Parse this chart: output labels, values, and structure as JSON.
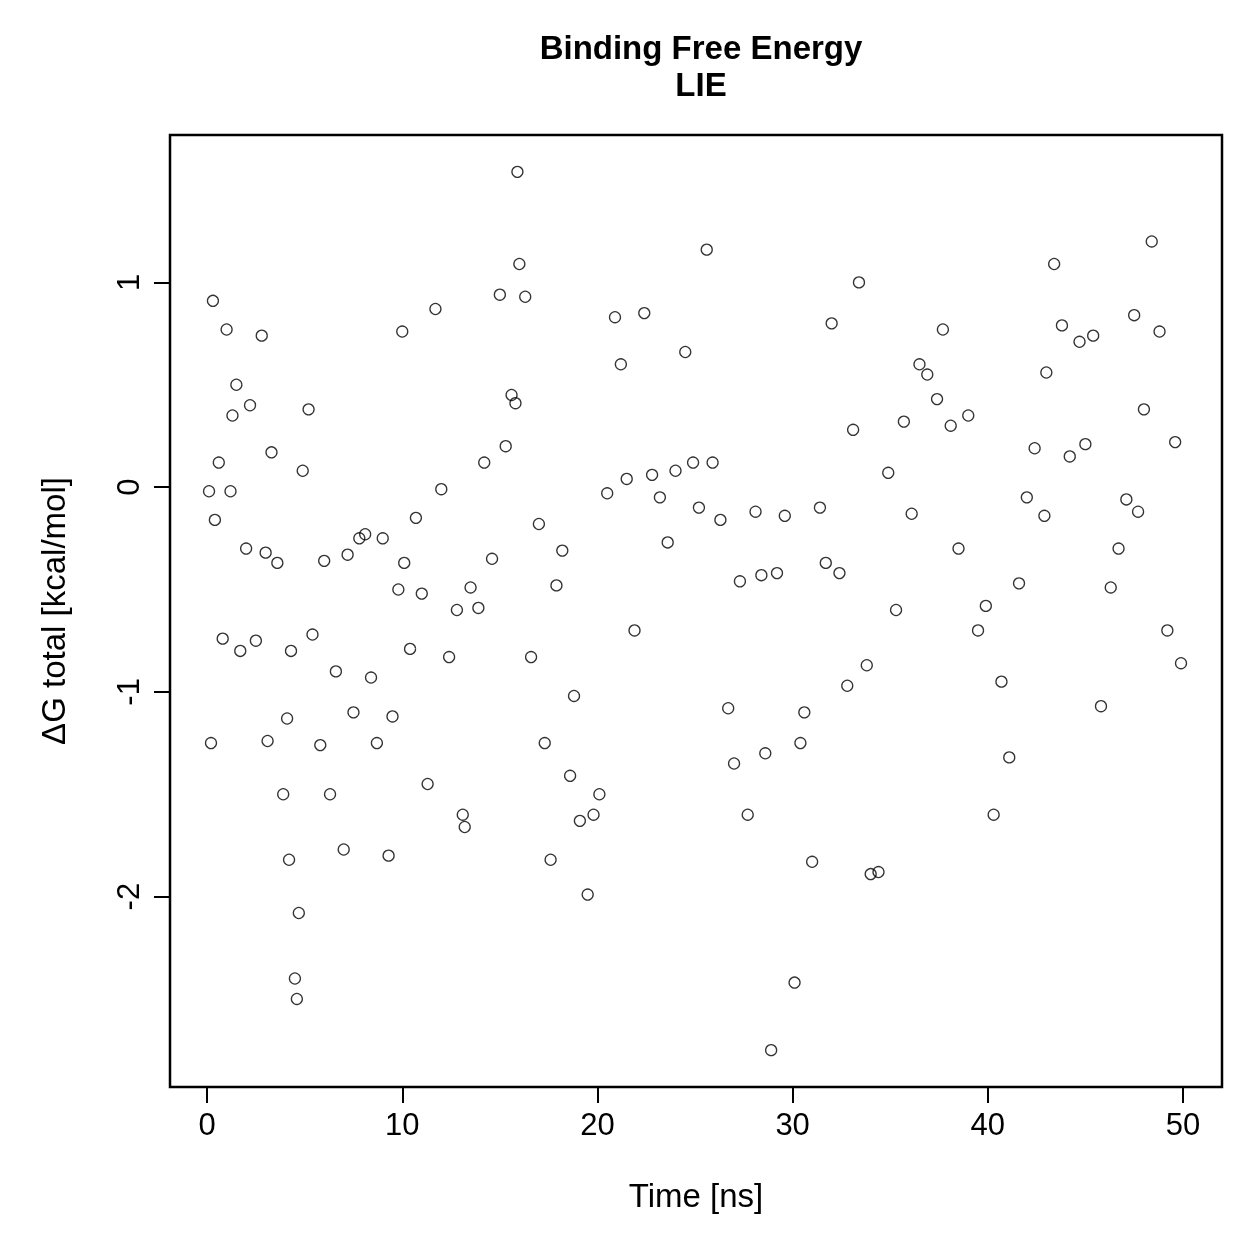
{
  "chart_data": {
    "type": "scatter",
    "title": "Binding Free Energy",
    "subtitle": "LIE",
    "xlabel": "Time [ns]",
    "ylabel": "ΔG total [kcal/mol]",
    "xlim": [
      -1.9,
      52
    ],
    "ylim": [
      -2.93,
      1.72
    ],
    "xticks": [
      0,
      10,
      20,
      30,
      40,
      50
    ],
    "yticks": [
      -2,
      -1,
      0,
      1
    ],
    "grid": false,
    "marker": "circle",
    "series": [
      {
        "color": "#000000",
        "x": [
          0.1,
          0.2,
          0.3,
          0.4,
          0.6,
          0.8,
          1.0,
          1.2,
          1.3,
          1.5,
          1.7,
          2.0,
          2.2,
          2.5,
          2.8,
          3.0,
          3.1,
          3.3,
          3.6,
          3.9,
          4.1,
          4.2,
          4.3,
          4.5,
          4.6,
          4.7,
          4.9,
          5.2,
          5.4,
          5.8,
          6.0,
          6.3,
          6.6,
          7.0,
          7.2,
          7.5,
          7.8,
          8.1,
          8.4,
          8.7,
          9.0,
          9.3,
          9.5,
          9.8,
          10.0,
          10.1,
          10.4,
          10.7,
          11.0,
          11.3,
          11.7,
          12.0,
          12.4,
          12.8,
          13.1,
          13.2,
          13.5,
          13.9,
          14.2,
          14.6,
          15.0,
          15.3,
          15.6,
          15.8,
          15.9,
          16.0,
          16.3,
          16.6,
          17.0,
          17.3,
          17.6,
          17.9,
          18.2,
          18.6,
          18.8,
          19.1,
          19.5,
          19.8,
          20.1,
          20.5,
          20.9,
          21.2,
          21.5,
          21.9,
          22.4,
          22.8,
          23.2,
          23.6,
          24.0,
          24.5,
          24.9,
          25.2,
          25.6,
          25.9,
          26.3,
          26.7,
          27.0,
          27.3,
          27.7,
          28.1,
          28.4,
          28.6,
          28.9,
          29.2,
          29.6,
          30.1,
          30.4,
          30.6,
          31.0,
          31.4,
          31.7,
          32.0,
          32.4,
          32.8,
          33.1,
          33.4,
          33.8,
          34.0,
          34.4,
          34.9,
          35.3,
          35.7,
          36.1,
          36.5,
          36.9,
          37.4,
          37.7,
          38.1,
          38.5,
          39.0,
          39.5,
          39.9,
          40.3,
          40.7,
          41.1,
          41.6,
          42.0,
          42.4,
          42.9,
          43.0,
          43.4,
          43.8,
          44.2,
          44.7,
          45.0,
          45.4,
          45.8,
          46.3,
          46.7,
          47.1,
          47.5,
          47.7,
          48.0,
          48.4,
          48.8,
          49.2,
          49.6,
          49.9
        ],
        "values": [
          -0.02,
          -1.25,
          0.91,
          -0.16,
          0.12,
          -0.74,
          0.77,
          -0.02,
          0.35,
          0.5,
          -0.8,
          -0.3,
          0.4,
          -0.75,
          0.74,
          -0.32,
          -1.24,
          0.17,
          -0.37,
          -1.5,
          -1.13,
          -1.82,
          -0.8,
          -2.4,
          -2.5,
          -2.08,
          0.08,
          0.38,
          -0.72,
          -1.26,
          -0.36,
          -1.5,
          -0.9,
          -1.77,
          -0.33,
          -1.1,
          -0.25,
          -0.23,
          -0.93,
          -1.25,
          -0.25,
          -1.8,
          -1.12,
          -0.5,
          0.76,
          -0.37,
          -0.79,
          -0.15,
          -0.52,
          -1.45,
          0.87,
          -0.01,
          -0.83,
          -0.6,
          -1.6,
          -1.66,
          -0.49,
          -0.59,
          0.12,
          -0.35,
          0.94,
          0.2,
          0.45,
          0.41,
          1.54,
          1.09,
          0.93,
          -0.83,
          -0.18,
          -1.25,
          -1.82,
          -0.48,
          -0.31,
          -1.41,
          -1.02,
          -1.63,
          -1.99,
          -1.6,
          -1.5,
          -0.03,
          0.83,
          0.6,
          0.04,
          -0.7,
          0.85,
          0.06,
          -0.05,
          -0.27,
          0.08,
          0.66,
          0.12,
          -0.1,
          1.16,
          0.12,
          -0.16,
          -1.08,
          -1.35,
          -0.46,
          -1.6,
          -0.12,
          -0.43,
          -1.3,
          -2.75,
          -0.42,
          -0.14,
          -2.42,
          -1.25,
          -1.1,
          -1.83,
          -0.1,
          -0.37,
          0.8,
          -0.42,
          -0.97,
          0.28,
          1.0,
          -0.87,
          -1.89,
          -1.88,
          0.07,
          -0.6,
          0.32,
          -0.13,
          0.6,
          0.55,
          0.43,
          0.77,
          0.3,
          -0.3,
          0.35,
          -0.7,
          -0.58,
          -1.6,
          -0.95,
          -1.32,
          -0.47,
          -0.05,
          0.19,
          -0.14,
          0.56,
          1.09,
          0.79,
          0.15,
          0.71,
          0.21,
          0.74,
          -1.07,
          -0.49,
          -0.3,
          -0.06,
          0.84,
          -0.12,
          0.38,
          1.2,
          0.76,
          -0.7,
          0.22,
          -0.86
        ]
      }
    ]
  }
}
